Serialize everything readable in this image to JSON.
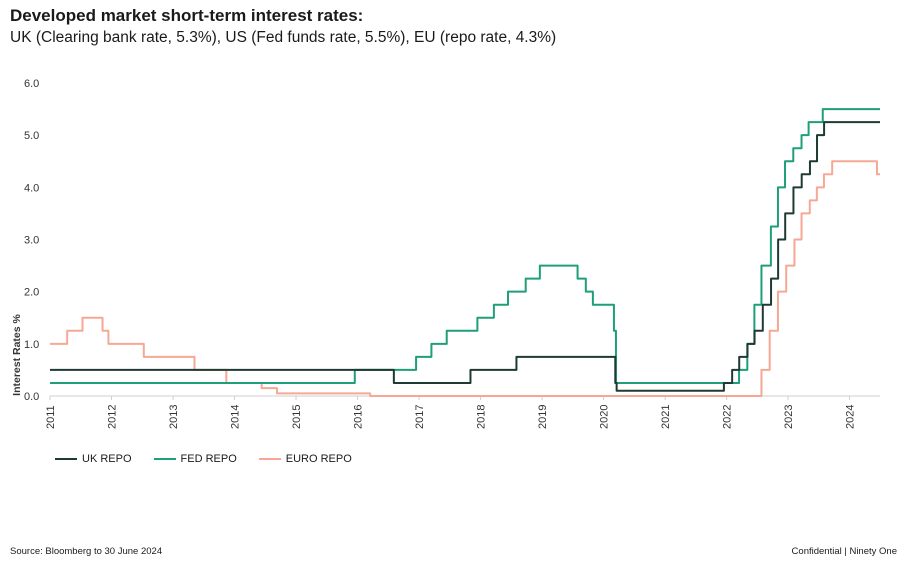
{
  "title": "Developed market short-term interest rates:",
  "subtitle": "UK (Clearing bank rate, 5.3%), US (Fed funds rate, 5.5%), EU (repo rate, 4.3%)",
  "footer": {
    "source": "Source: Bloomberg to 30 June 2024",
    "confidential": "Confidential | Ninety One"
  },
  "chart_data": {
    "type": "line",
    "ylabel": "Interest Rates %",
    "xlabel": "",
    "ylim": [
      0,
      6
    ],
    "yticks": [
      "0.0",
      "1.0",
      "2.0",
      "3.0",
      "4.0",
      "5.0",
      "6.0"
    ],
    "xlim": [
      "2011-01-01",
      "2024-06-30"
    ],
    "xticks": [
      "2011",
      "2012",
      "2013",
      "2014",
      "2015",
      "2016",
      "2017",
      "2018",
      "2019",
      "2020",
      "2021",
      "2022",
      "2023",
      "2024"
    ],
    "grid": false,
    "legend_position": "bottom-left",
    "series": [
      {
        "name": "UK REPO",
        "color": "#1e3a33",
        "points": [
          [
            "2011-01-01",
            0.5
          ],
          [
            "2016-08-04",
            0.5
          ],
          [
            "2016-08-04",
            0.25
          ],
          [
            "2017-11-02",
            0.25
          ],
          [
            "2017-11-02",
            0.5
          ],
          [
            "2018-08-02",
            0.5
          ],
          [
            "2018-08-02",
            0.75
          ],
          [
            "2020-03-11",
            0.75
          ],
          [
            "2020-03-11",
            0.25
          ],
          [
            "2020-03-19",
            0.25
          ],
          [
            "2020-03-19",
            0.1
          ],
          [
            "2021-12-16",
            0.1
          ],
          [
            "2021-12-16",
            0.25
          ],
          [
            "2022-02-03",
            0.25
          ],
          [
            "2022-02-03",
            0.5
          ],
          [
            "2022-03-17",
            0.5
          ],
          [
            "2022-03-17",
            0.75
          ],
          [
            "2022-05-05",
            0.75
          ],
          [
            "2022-05-05",
            1.0
          ],
          [
            "2022-06-16",
            1.0
          ],
          [
            "2022-06-16",
            1.25
          ],
          [
            "2022-08-04",
            1.25
          ],
          [
            "2022-08-04",
            1.75
          ],
          [
            "2022-09-22",
            1.75
          ],
          [
            "2022-09-22",
            2.25
          ],
          [
            "2022-11-03",
            2.25
          ],
          [
            "2022-11-03",
            3.0
          ],
          [
            "2022-12-15",
            3.0
          ],
          [
            "2022-12-15",
            3.5
          ],
          [
            "2023-02-02",
            3.5
          ],
          [
            "2023-02-02",
            4.0
          ],
          [
            "2023-03-23",
            4.0
          ],
          [
            "2023-03-23",
            4.25
          ],
          [
            "2023-05-11",
            4.25
          ],
          [
            "2023-05-11",
            4.5
          ],
          [
            "2023-06-22",
            4.5
          ],
          [
            "2023-06-22",
            5.0
          ],
          [
            "2023-08-03",
            5.0
          ],
          [
            "2023-08-03",
            5.25
          ],
          [
            "2024-06-30",
            5.25
          ]
        ]
      },
      {
        "name": "FED REPO",
        "color": "#1f9e7a",
        "points": [
          [
            "2011-01-01",
            0.25
          ],
          [
            "2015-12-16",
            0.25
          ],
          [
            "2015-12-16",
            0.5
          ],
          [
            "2016-12-14",
            0.5
          ],
          [
            "2016-12-14",
            0.75
          ],
          [
            "2017-03-15",
            0.75
          ],
          [
            "2017-03-15",
            1.0
          ],
          [
            "2017-06-14",
            1.0
          ],
          [
            "2017-06-14",
            1.25
          ],
          [
            "2017-12-13",
            1.25
          ],
          [
            "2017-12-13",
            1.5
          ],
          [
            "2018-03-21",
            1.5
          ],
          [
            "2018-03-21",
            1.75
          ],
          [
            "2018-06-13",
            1.75
          ],
          [
            "2018-06-13",
            2.0
          ],
          [
            "2018-09-26",
            2.0
          ],
          [
            "2018-09-26",
            2.25
          ],
          [
            "2018-12-19",
            2.25
          ],
          [
            "2018-12-19",
            2.5
          ],
          [
            "2019-07-31",
            2.5
          ],
          [
            "2019-07-31",
            2.25
          ],
          [
            "2019-09-18",
            2.25
          ],
          [
            "2019-09-18",
            2.0
          ],
          [
            "2019-10-30",
            2.0
          ],
          [
            "2019-10-30",
            1.75
          ],
          [
            "2020-03-03",
            1.75
          ],
          [
            "2020-03-03",
            1.25
          ],
          [
            "2020-03-15",
            1.25
          ],
          [
            "2020-03-15",
            0.25
          ],
          [
            "2022-03-16",
            0.25
          ],
          [
            "2022-03-16",
            0.5
          ],
          [
            "2022-05-04",
            0.5
          ],
          [
            "2022-05-04",
            1.0
          ],
          [
            "2022-06-15",
            1.0
          ],
          [
            "2022-06-15",
            1.75
          ],
          [
            "2022-07-27",
            1.75
          ],
          [
            "2022-07-27",
            2.5
          ],
          [
            "2022-09-21",
            2.5
          ],
          [
            "2022-09-21",
            3.25
          ],
          [
            "2022-11-02",
            3.25
          ],
          [
            "2022-11-02",
            4.0
          ],
          [
            "2022-12-14",
            4.0
          ],
          [
            "2022-12-14",
            4.5
          ],
          [
            "2023-02-01",
            4.5
          ],
          [
            "2023-02-01",
            4.75
          ],
          [
            "2023-03-22",
            4.75
          ],
          [
            "2023-03-22",
            5.0
          ],
          [
            "2023-05-03",
            5.0
          ],
          [
            "2023-05-03",
            5.25
          ],
          [
            "2023-07-26",
            5.25
          ],
          [
            "2023-07-26",
            5.5
          ],
          [
            "2024-06-30",
            5.5
          ]
        ]
      },
      {
        "name": "EURO REPO",
        "color": "#f6a894",
        "points": [
          [
            "2011-01-01",
            1.0
          ],
          [
            "2011-04-13",
            1.0
          ],
          [
            "2011-04-13",
            1.25
          ],
          [
            "2011-07-13",
            1.25
          ],
          [
            "2011-07-13",
            1.5
          ],
          [
            "2011-11-09",
            1.5
          ],
          [
            "2011-11-09",
            1.25
          ],
          [
            "2011-12-14",
            1.25
          ],
          [
            "2011-12-14",
            1.0
          ],
          [
            "2012-07-11",
            1.0
          ],
          [
            "2012-07-11",
            0.75
          ],
          [
            "2013-05-08",
            0.75
          ],
          [
            "2013-05-08",
            0.5
          ],
          [
            "2013-11-13",
            0.5
          ],
          [
            "2013-11-13",
            0.25
          ],
          [
            "2014-06-11",
            0.25
          ],
          [
            "2014-06-11",
            0.15
          ],
          [
            "2014-09-10",
            0.15
          ],
          [
            "2014-09-10",
            0.05
          ],
          [
            "2016-03-16",
            0.05
          ],
          [
            "2016-03-16",
            0.0
          ],
          [
            "2022-07-27",
            0.0
          ],
          [
            "2022-07-27",
            0.5
          ],
          [
            "2022-09-14",
            0.5
          ],
          [
            "2022-09-14",
            1.25
          ],
          [
            "2022-11-02",
            1.25
          ],
          [
            "2022-11-02",
            2.0
          ],
          [
            "2022-12-21",
            2.0
          ],
          [
            "2022-12-21",
            2.5
          ],
          [
            "2023-02-08",
            2.5
          ],
          [
            "2023-02-08",
            3.0
          ],
          [
            "2023-03-22",
            3.0
          ],
          [
            "2023-03-22",
            3.5
          ],
          [
            "2023-05-10",
            3.5
          ],
          [
            "2023-05-10",
            3.75
          ],
          [
            "2023-06-21",
            3.75
          ],
          [
            "2023-06-21",
            4.0
          ],
          [
            "2023-08-02",
            4.0
          ],
          [
            "2023-08-02",
            4.25
          ],
          [
            "2023-09-20",
            4.25
          ],
          [
            "2023-09-20",
            4.5
          ],
          [
            "2024-06-12",
            4.5
          ],
          [
            "2024-06-12",
            4.25
          ],
          [
            "2024-06-30",
            4.25
          ]
        ]
      }
    ]
  }
}
